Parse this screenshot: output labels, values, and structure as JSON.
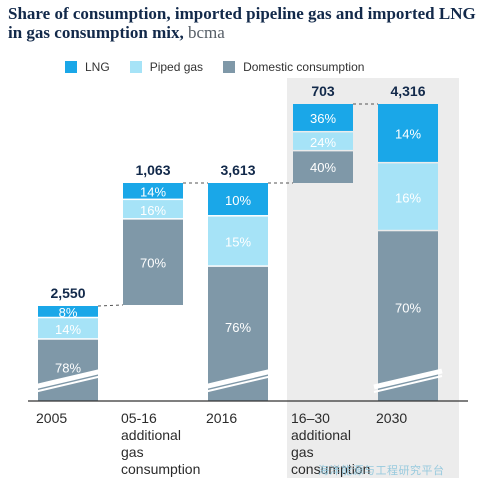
{
  "title": {
    "main": "Share of consumption, imported pipeline gas and imported LNG in gas consumption mix,",
    "unit": " bcma"
  },
  "legend": [
    {
      "name": "LNG",
      "color": "#1aa7e8"
    },
    {
      "name": "Piped gas",
      "color": "#a6e3f7"
    },
    {
      "name": "Domestic consumption",
      "color": "#7f98a8"
    }
  ],
  "watermark": "海洋能源与工程研究平台",
  "chart_data": {
    "type": "bar",
    "subtype": "waterfall-stacked",
    "categories": [
      "2005",
      "05-16 additional gas consumption",
      "2016",
      "16–30 additional gas consumption",
      "2030"
    ],
    "totals": [
      "2,550",
      "1,063",
      "3,613",
      "703",
      "4,316"
    ],
    "series": [
      {
        "name": "Domestic consumption",
        "color": "#7f98a8",
        "values": [
          78,
          70,
          76,
          40,
          70
        ]
      },
      {
        "name": "Piped gas",
        "color": "#a6e3f7",
        "values": [
          14,
          16,
          15,
          24,
          16
        ]
      },
      {
        "name": "LNG",
        "color": "#1aa7e8",
        "values": [
          8,
          14,
          10,
          36,
          14
        ]
      }
    ],
    "value_unit": "%",
    "highlight_region": [
      "16–30 additional gas consumption",
      "2030"
    ],
    "axis_break": true
  }
}
